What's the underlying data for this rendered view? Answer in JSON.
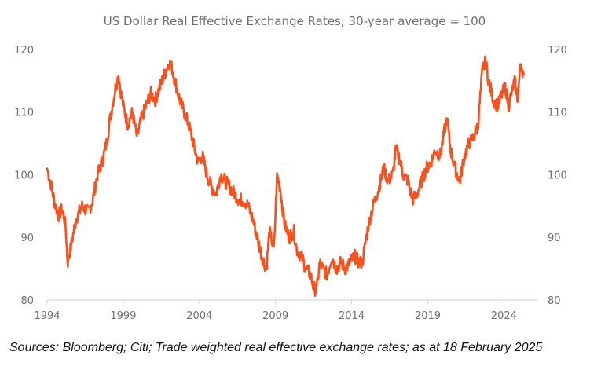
{
  "source_note": "Sources: Bloomberg; Citi; Trade weighted real effective exchange rates; as at 18 February 2025",
  "colors": {
    "series": "#f5521f",
    "axis": "#cfcfcf",
    "text": "#6f6f6f",
    "background": "#ffffff"
  },
  "chart_data": {
    "type": "line",
    "title": "US Dollar Real Effective Exchange Rates; 30-year average = 100",
    "xlabel": "",
    "ylabel": "",
    "x_ticks": [
      "1994",
      "1999",
      "2004",
      "2009",
      "2014",
      "2019",
      "2024"
    ],
    "y_ticks": [
      80,
      90,
      100,
      110,
      120
    ],
    "xlim": [
      1994,
      2026.2
    ],
    "ylim": [
      80,
      121
    ],
    "y_axis_sides": [
      "left",
      "right"
    ],
    "grid": false,
    "legend": "none",
    "series": [
      {
        "x": [
          1994.0,
          1994.25,
          1994.5,
          1994.75,
          1995.0,
          1995.2,
          1995.35,
          1995.6,
          1995.9,
          1996.3,
          1996.7,
          1997.0,
          1997.3,
          1997.6,
          1997.9,
          1998.2,
          1998.5,
          1998.7,
          1998.85,
          1999.0,
          1999.3,
          1999.6,
          1999.9,
          2000.2,
          2000.5,
          2000.8,
          2001.1,
          2001.4,
          2001.7,
          2002.0,
          2002.2,
          2002.4,
          2002.7,
          2003.0,
          2003.3,
          2003.6,
          2003.9,
          2004.2,
          2004.5,
          2004.8,
          2005.1,
          2005.4,
          2005.7,
          2006.0,
          2006.3,
          2006.6,
          2006.9,
          2007.2,
          2007.5,
          2007.8,
          2008.1,
          2008.4,
          2008.6,
          2008.9,
          2009.1,
          2009.3,
          2009.6,
          2009.9,
          2010.2,
          2010.4,
          2010.7,
          2011.0,
          2011.3,
          2011.5,
          2011.7,
          2011.9,
          2012.1,
          2012.4,
          2012.7,
          2013.0,
          2013.3,
          2013.6,
          2013.9,
          2014.2,
          2014.5,
          2014.7,
          2014.9,
          2015.1,
          2015.4,
          2015.8,
          2016.1,
          2016.4,
          2016.7,
          2016.9,
          2017.1,
          2017.4,
          2017.7,
          2018.0,
          2018.3,
          2018.6,
          2018.9,
          2019.2,
          2019.5,
          2019.8,
          2020.1,
          2020.25,
          2020.5,
          2020.8,
          2021.1,
          2021.4,
          2021.7,
          2022.0,
          2022.3,
          2022.6,
          2022.8,
          2023.0,
          2023.3,
          2023.6,
          2023.9,
          2024.1,
          2024.3,
          2024.5,
          2024.7,
          2024.9,
          2025.1,
          2025.3
        ],
        "y": [
          101,
          98.5,
          95.5,
          93.5,
          94.5,
          92,
          86,
          89,
          93,
          95,
          94,
          96,
          100,
          102,
          105,
          110,
          114,
          116,
          113,
          111,
          108,
          110,
          106,
          109,
          111,
          113,
          112,
          114,
          116,
          118,
          117,
          115,
          112,
          110,
          108,
          105,
          102,
          103,
          100,
          98,
          97,
          100,
          99,
          98,
          97,
          96,
          96,
          95,
          93,
          90,
          87,
          85,
          91,
          88,
          100,
          98,
          92,
          90,
          91,
          88,
          87,
          85,
          84,
          82,
          81.5,
          86,
          85,
          84,
          87,
          85,
          86,
          85,
          86,
          87,
          86,
          86,
          89,
          92,
          95,
          98,
          101,
          99,
          100,
          104,
          103,
          100,
          99,
          96,
          97,
          99,
          101,
          102,
          104,
          103,
          107,
          109,
          104,
          101,
          99,
          103,
          105,
          106,
          108,
          117,
          118,
          115,
          112,
          111,
          113,
          114,
          111,
          113,
          115,
          112,
          118,
          116
        ]
      }
    ]
  }
}
